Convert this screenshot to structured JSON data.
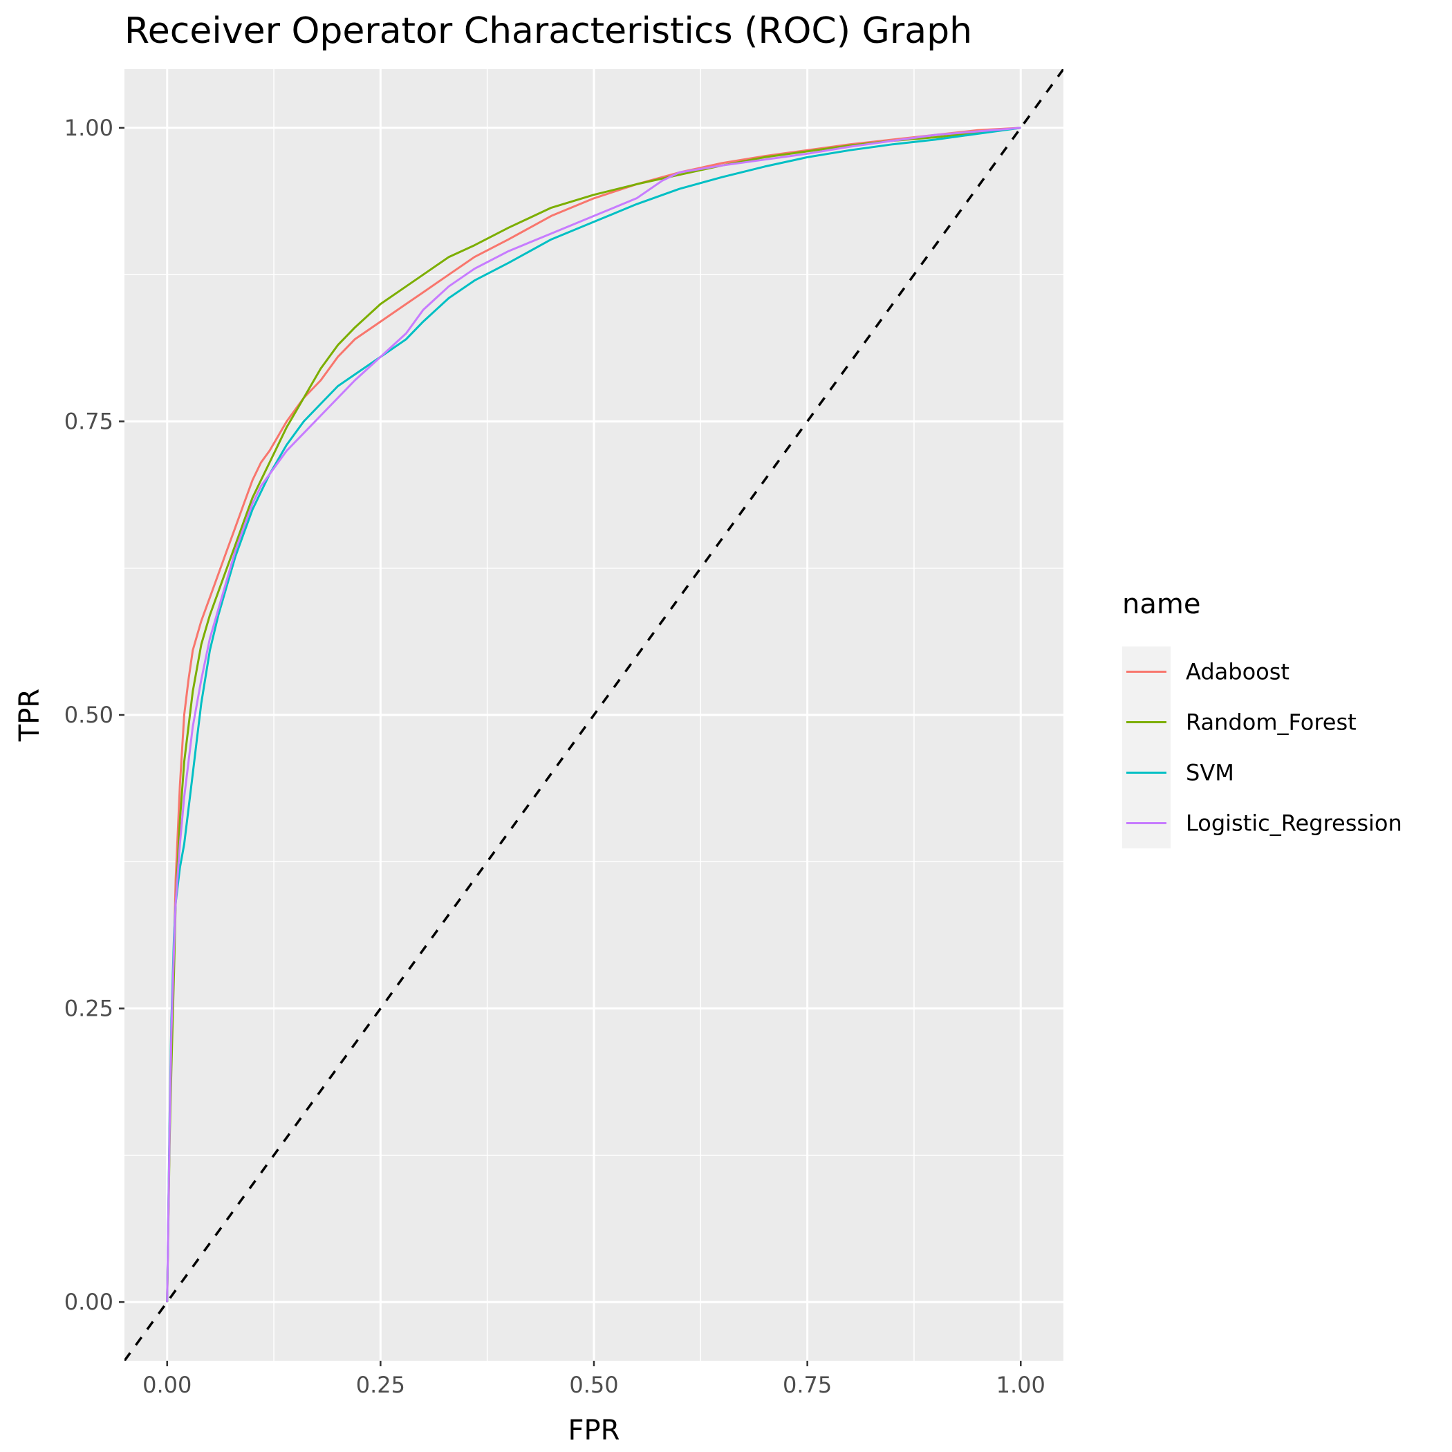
{
  "chart_data": {
    "type": "line",
    "title": "Receiver Operator Characteristics (ROC) Graph",
    "xlabel": "FPR",
    "ylabel": "TPR",
    "xlim": [
      -0.05,
      1.05
    ],
    "ylim": [
      -0.05,
      1.05
    ],
    "x_ticks": [
      0,
      0.25,
      0.5,
      0.75,
      1
    ],
    "x_tick_labels": [
      "0.00",
      "0.25",
      "0.50",
      "0.75",
      "1.00"
    ],
    "y_ticks": [
      0,
      0.25,
      0.5,
      0.75,
      1
    ],
    "y_tick_labels": [
      "0.00",
      "0.25",
      "0.50",
      "0.75",
      "1.00"
    ],
    "grid": true,
    "legend": {
      "title": "name",
      "position": "right"
    },
    "reference_line": {
      "x": [
        0,
        1
      ],
      "y": [
        0,
        1
      ],
      "style": "dashed",
      "color": "#000000"
    },
    "series": [
      {
        "name": "Adaboost",
        "color": "#F8766D",
        "x": [
          0,
          0.003,
          0.005,
          0.008,
          0.01,
          0.015,
          0.02,
          0.025,
          0.03,
          0.04,
          0.05,
          0.06,
          0.07,
          0.08,
          0.09,
          0.1,
          0.11,
          0.12,
          0.14,
          0.16,
          0.18,
          0.2,
          0.22,
          0.25,
          0.28,
          0.3,
          0.33,
          0.36,
          0.4,
          0.45,
          0.5,
          0.55,
          0.6,
          0.65,
          0.7,
          0.75,
          0.8,
          0.85,
          0.9,
          0.95,
          1.0
        ],
        "y": [
          0,
          0.15,
          0.22,
          0.3,
          0.36,
          0.44,
          0.5,
          0.53,
          0.555,
          0.58,
          0.6,
          0.62,
          0.64,
          0.66,
          0.68,
          0.7,
          0.715,
          0.725,
          0.75,
          0.77,
          0.785,
          0.805,
          0.82,
          0.835,
          0.85,
          0.86,
          0.875,
          0.89,
          0.905,
          0.925,
          0.94,
          0.952,
          0.962,
          0.97,
          0.976,
          0.981,
          0.986,
          0.99,
          0.994,
          0.998,
          1.0
        ]
      },
      {
        "name": "Random_Forest",
        "color": "#7CAE00",
        "x": [
          0,
          0.003,
          0.005,
          0.008,
          0.01,
          0.015,
          0.02,
          0.025,
          0.03,
          0.04,
          0.05,
          0.06,
          0.07,
          0.08,
          0.09,
          0.1,
          0.11,
          0.12,
          0.14,
          0.16,
          0.18,
          0.2,
          0.22,
          0.25,
          0.28,
          0.3,
          0.33,
          0.36,
          0.4,
          0.45,
          0.5,
          0.55,
          0.6,
          0.65,
          0.7,
          0.75,
          0.8,
          0.85,
          0.9,
          0.95,
          1.0
        ],
        "y": [
          0,
          0.14,
          0.2,
          0.28,
          0.34,
          0.41,
          0.46,
          0.49,
          0.52,
          0.56,
          0.585,
          0.605,
          0.625,
          0.645,
          0.665,
          0.685,
          0.7,
          0.715,
          0.745,
          0.77,
          0.795,
          0.815,
          0.83,
          0.85,
          0.865,
          0.875,
          0.89,
          0.9,
          0.915,
          0.932,
          0.943,
          0.952,
          0.96,
          0.968,
          0.975,
          0.98,
          0.985,
          0.989,
          0.992,
          0.996,
          1.0
        ]
      },
      {
        "name": "SVM",
        "color": "#00BFC4",
        "x": [
          0,
          0.003,
          0.005,
          0.008,
          0.01,
          0.015,
          0.02,
          0.025,
          0.03,
          0.035,
          0.04,
          0.05,
          0.06,
          0.07,
          0.08,
          0.09,
          0.1,
          0.11,
          0.12,
          0.14,
          0.16,
          0.18,
          0.2,
          0.22,
          0.25,
          0.28,
          0.3,
          0.33,
          0.36,
          0.4,
          0.45,
          0.5,
          0.55,
          0.6,
          0.65,
          0.7,
          0.75,
          0.8,
          0.85,
          0.9,
          0.95,
          1.0
        ],
        "y": [
          0,
          0.16,
          0.24,
          0.31,
          0.34,
          0.37,
          0.39,
          0.42,
          0.45,
          0.48,
          0.51,
          0.555,
          0.585,
          0.61,
          0.635,
          0.655,
          0.675,
          0.69,
          0.705,
          0.73,
          0.75,
          0.765,
          0.78,
          0.79,
          0.805,
          0.82,
          0.835,
          0.855,
          0.87,
          0.885,
          0.905,
          0.92,
          0.935,
          0.948,
          0.958,
          0.967,
          0.975,
          0.981,
          0.986,
          0.99,
          0.995,
          1.0
        ]
      },
      {
        "name": "Logistic_Regression",
        "color": "#C77CFF",
        "x": [
          0,
          0.003,
          0.005,
          0.008,
          0.01,
          0.015,
          0.02,
          0.025,
          0.03,
          0.04,
          0.05,
          0.06,
          0.07,
          0.08,
          0.09,
          0.1,
          0.11,
          0.12,
          0.14,
          0.16,
          0.18,
          0.2,
          0.22,
          0.25,
          0.28,
          0.3,
          0.33,
          0.36,
          0.4,
          0.45,
          0.5,
          0.55,
          0.58,
          0.6,
          0.65,
          0.7,
          0.75,
          0.8,
          0.85,
          0.9,
          0.95,
          1.0
        ],
        "y": [
          0,
          0.15,
          0.23,
          0.3,
          0.34,
          0.39,
          0.43,
          0.46,
          0.49,
          0.53,
          0.565,
          0.59,
          0.615,
          0.64,
          0.66,
          0.68,
          0.695,
          0.705,
          0.725,
          0.74,
          0.755,
          0.77,
          0.785,
          0.805,
          0.825,
          0.845,
          0.865,
          0.88,
          0.895,
          0.91,
          0.925,
          0.94,
          0.955,
          0.962,
          0.968,
          0.973,
          0.978,
          0.984,
          0.989,
          0.994,
          0.997,
          1.0
        ]
      }
    ]
  }
}
